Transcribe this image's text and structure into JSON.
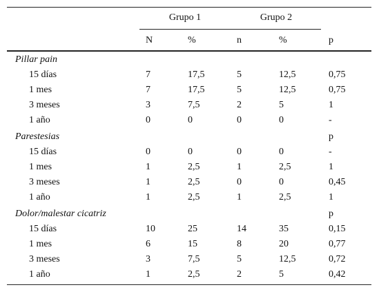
{
  "header": {
    "groups": [
      "Grupo 1",
      "Grupo 2"
    ],
    "columns": [
      "N",
      "%",
      "n",
      "%",
      "p"
    ]
  },
  "sections": [
    {
      "title": "Pillar pain",
      "p": null,
      "rows": [
        [
          "15 días",
          "7",
          "17,5",
          "5",
          "12,5",
          "0,75"
        ],
        [
          "1 mes",
          "7",
          "17,5",
          "5",
          "12,5",
          "0,75"
        ],
        [
          "3 meses",
          "3",
          "7,5",
          "2",
          "5",
          "1"
        ],
        [
          "1 año",
          "0",
          "0",
          "0",
          "0",
          "-"
        ]
      ]
    },
    {
      "title": "Parestesias",
      "p": "p",
      "rows": [
        [
          "15 días",
          "0",
          "0",
          "0",
          "0",
          "-"
        ],
        [
          "1 mes",
          "1",
          "2,5",
          "1",
          "2,5",
          "1"
        ],
        [
          "3 meses",
          "1",
          "2,5",
          "0",
          "0",
          "0,45"
        ],
        [
          "1 año",
          "1",
          "2,5",
          "1",
          "2,5",
          "1"
        ]
      ]
    },
    {
      "title": "Dolor/malestar cicatriz",
      "p": "p",
      "rows": [
        [
          "15 días",
          "10",
          "25",
          "14",
          "35",
          "0,15"
        ],
        [
          "1 mes",
          "6",
          "15",
          "8",
          "20",
          "0,77"
        ],
        [
          "3 meses",
          "3",
          "7,5",
          "5",
          "12,5",
          "0,72"
        ],
        [
          "1 año",
          "1",
          "2,5",
          "2",
          "5",
          "0,42"
        ]
      ]
    }
  ]
}
